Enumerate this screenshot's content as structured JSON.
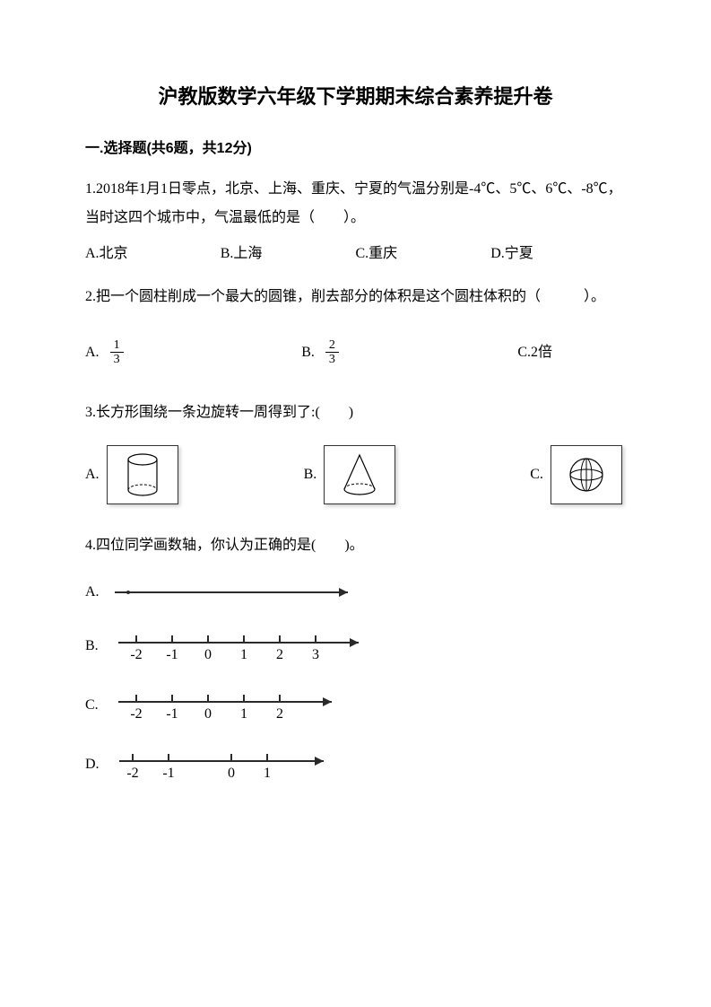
{
  "title": "沪教版数学六年级下学期期末综合素养提升卷",
  "section1": {
    "header": "一.选择题(共6题，共12分)",
    "q1": {
      "text": "1.2018年1月1日零点，北京、上海、重庆、宁夏的气温分别是-4℃、5℃、6℃、-8℃，当时这四个城市中，气温最低的是（　　）。",
      "optA": "A.北京",
      "optB": "B.上海",
      "optC": "C.重庆",
      "optD": "D.宁夏"
    },
    "q2": {
      "text": "2.把一个圆柱削成一个最大的圆锥，削去部分的体积是这个圆柱体积的（　　　）。",
      "labelA": "A.",
      "labelB": "B.",
      "labelC": "C.2倍",
      "fracA_num": "1",
      "fracA_den": "3",
      "fracB_num": "2",
      "fracB_den": "3"
    },
    "q3": {
      "text": "3.长方形围绕一条边旋转一周得到了:(　　)",
      "labelA": "A.",
      "labelB": "B.",
      "labelC": "C.",
      "shapes": {
        "cylinder_color": "#000000",
        "cone_color": "#000000",
        "sphere_color": "#000000"
      }
    },
    "q4": {
      "text": "4.四位同学画数轴，你认为正确的是(　　)。",
      "labelA": "A.",
      "labelB": "B.",
      "labelC": "C.",
      "labelD": "D.",
      "lineA": {
        "ticks": []
      },
      "lineB": {
        "ticks": [
          "-2",
          "-1",
          "0",
          "1",
          "2",
          "3"
        ],
        "spacing": 40
      },
      "lineC": {
        "ticks": [
          "-2",
          "-1",
          "0",
          "1",
          "2"
        ],
        "spacing": 40
      },
      "lineD": {
        "ticks": [
          "-2",
          "-1",
          "0",
          "1"
        ],
        "spacing_irregular": [
          40,
          70,
          40
        ]
      }
    }
  },
  "colors": {
    "text": "#000000",
    "bg": "#ffffff",
    "line": "#2a2a2a"
  }
}
